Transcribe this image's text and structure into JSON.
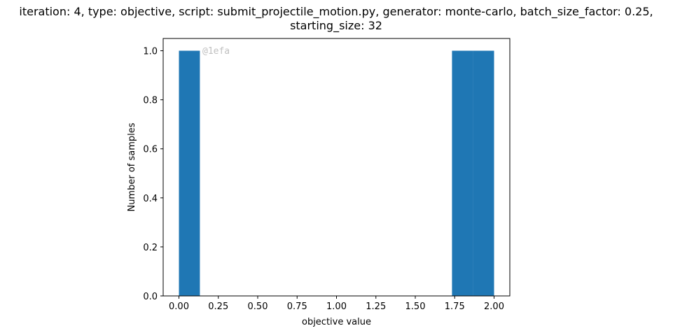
{
  "chart_data": {
    "type": "bar",
    "title_lines": [
      "iteration: 4, type: objective, script: submit_projectile_motion.py, generator: monte-carlo, batch_size_factor: 0.25,",
      "starting_size: 32"
    ],
    "xlabel": "objective value",
    "ylabel": "Number of samples",
    "xlim": [
      -0.1,
      2.1
    ],
    "ylim": [
      0,
      1.05
    ],
    "x_ticks": [
      0.0,
      0.25,
      0.5,
      0.75,
      1.0,
      1.25,
      1.5,
      1.75,
      2.0
    ],
    "x_tick_labels": [
      "0.00",
      "0.25",
      "0.50",
      "0.75",
      "1.00",
      "1.25",
      "1.50",
      "1.75",
      "2.00"
    ],
    "y_ticks": [
      0.0,
      0.2,
      0.4,
      0.6,
      0.8,
      1.0
    ],
    "y_tick_labels": [
      "0.0",
      "0.2",
      "0.4",
      "0.6",
      "0.8",
      "1.0"
    ],
    "bin_edges": [
      0.0,
      0.133,
      0.267,
      0.4,
      0.533,
      0.667,
      0.8,
      0.933,
      1.067,
      1.2,
      1.333,
      1.467,
      1.6,
      1.733,
      1.867,
      2.0
    ],
    "values": [
      1,
      0,
      0,
      0,
      0,
      0,
      0,
      0,
      0,
      0,
      0,
      0,
      0,
      1,
      1
    ],
    "bar_color": "#1f77b4",
    "grid": false,
    "watermark": "@1efa"
  }
}
